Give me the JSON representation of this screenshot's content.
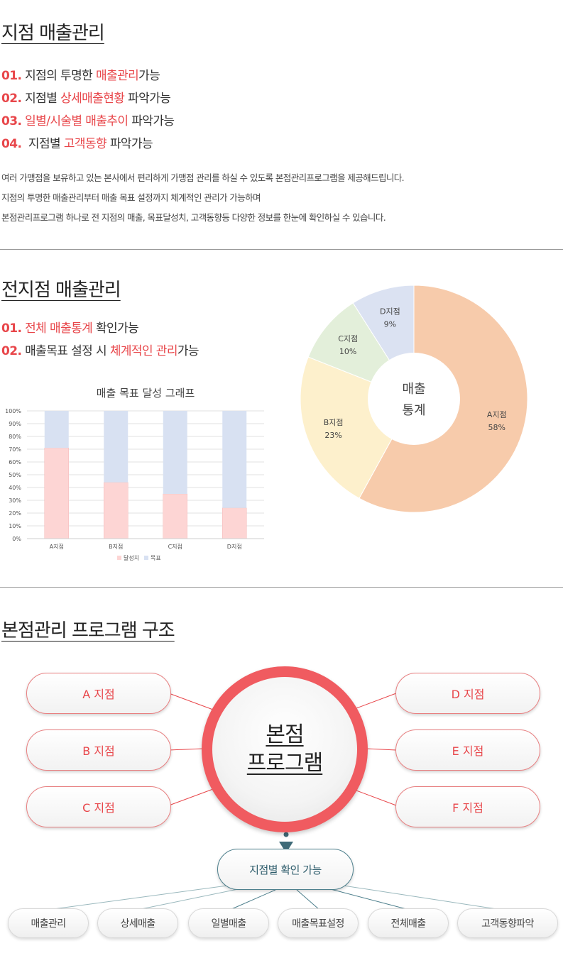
{
  "section1": {
    "title": "지점 매출관리",
    "points": [
      {
        "num": "01.",
        "segs": [
          {
            "t": " 지점의 투명한 ",
            "h": false
          },
          {
            "t": "매출관리",
            "h": true
          },
          {
            "t": "가능",
            "h": false
          }
        ]
      },
      {
        "num": "02.",
        "segs": [
          {
            "t": " 지점별 ",
            "h": false
          },
          {
            "t": "상세매출현황",
            "h": true
          },
          {
            "t": " 파악가능",
            "h": false
          }
        ]
      },
      {
        "num": "03.",
        "segs": [
          {
            "t": " ",
            "h": false
          },
          {
            "t": "일별/시술별 매출추이",
            "h": true
          },
          {
            "t": " 파악가능",
            "h": false
          }
        ]
      },
      {
        "num": "04.",
        "segs": [
          {
            "t": "  지점별 ",
            "h": false
          },
          {
            "t": "고객동향",
            "h": true
          },
          {
            "t": " 파악가능",
            "h": false
          }
        ]
      }
    ],
    "desc": [
      "여러 가맹점을 보유하고 있는 본사에서 편리하게 가맹점 관리를 하실 수 있도록 본점관리프로그램을 제공해드립니다.",
      "지점의 투명한 매출관리부터 매출 목표 설정까지 체계적인 관리가 가능하며",
      "본점관리프로그램 하나로 전 지점의 매출, 목표달성치, 고객동향등 다양한 정보를 한눈에 확인하실 수 있습니다."
    ]
  },
  "section2": {
    "title": "전지점 매출관리",
    "points": [
      {
        "num": "01.",
        "segs": [
          {
            "t": " ",
            "h": false
          },
          {
            "t": "전체 매출통계",
            "h": true
          },
          {
            "t": " 확인가능",
            "h": false
          }
        ]
      },
      {
        "num": "02.",
        "segs": [
          {
            "t": " 매출목표 설정 시 ",
            "h": false
          },
          {
            "t": "체계적인 관리",
            "h": true
          },
          {
            "t": "가능",
            "h": false
          }
        ]
      }
    ]
  },
  "chart_data": [
    {
      "type": "bar",
      "title": "매출 목표 달성 그래프",
      "categories": [
        "A지점",
        "B지점",
        "C지점",
        "D지점"
      ],
      "series": [
        {
          "name": "달성치",
          "values": [
            71,
            44,
            35,
            24
          ],
          "color": "#fdd5d4"
        },
        {
          "name": "목표",
          "values": [
            29,
            56,
            65,
            76
          ],
          "color": "#d8e1f2"
        }
      ],
      "stacked": true,
      "ylim": [
        0,
        100
      ],
      "yticks": [
        "0%",
        "10%",
        "20%",
        "30%",
        "40%",
        "50%",
        "60%",
        "70%",
        "80%",
        "90%",
        "100%"
      ],
      "legend": "bottom",
      "grid": true
    },
    {
      "type": "pie",
      "center_label": [
        "매출",
        "통계"
      ],
      "slices": [
        {
          "name": "A지점",
          "value": 58,
          "label": "58%",
          "color": "#f7cbab"
        },
        {
          "name": "B지점",
          "value": 23,
          "label": "23%",
          "color": "#fdf0cc"
        },
        {
          "name": "C지점",
          "value": 10,
          "label": "10%",
          "color": "#e3efda"
        },
        {
          "name": "D지점",
          "value": 9,
          "label": "9%",
          "color": "#dbe2f2"
        }
      ]
    }
  ],
  "section3": {
    "title": "본점관리 프로그램 구조",
    "center": [
      "본점",
      "프로그램"
    ],
    "left_branches": [
      "A 지점",
      "B 지점",
      "C 지점"
    ],
    "right_branches": [
      "D 지점",
      "E 지점",
      "F 지점"
    ],
    "check_label": "지점별 확인 가능",
    "features": [
      "매출관리",
      "상세매출",
      "일별매출",
      "매출목표설정",
      "전체매출",
      "고객동향파악"
    ],
    "colors": {
      "accent": "#e8464a",
      "teal": "#2f5d6c"
    }
  }
}
